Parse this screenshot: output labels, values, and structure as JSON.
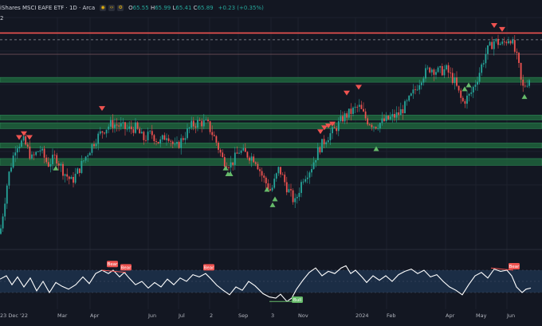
{
  "header": {
    "title": "iShares MSCI EAFE ETF · 1D · Arca",
    "ohlc": [
      {
        "key": "O",
        "value": "65.55"
      },
      {
        "key": "H",
        "value": "65.99"
      },
      {
        "key": "L",
        "value": "65.41"
      },
      {
        "key": "C",
        "value": "65.89"
      }
    ],
    "change": "+0.23 (+0.35%)",
    "sublabel": "2"
  },
  "colors": {
    "background": "#131722",
    "up": "#26a69a",
    "down": "#ef5350",
    "zone": "#1e5e3b",
    "zone_edge": "#2e8b57",
    "rsi_band": "#1b2d45",
    "rsi_line": "#ffffff",
    "bull_marker": "#66bb6a",
    "bear_marker": "#ef5350"
  },
  "icons": [
    "eye-icon",
    "code-icon",
    "gear-icon"
  ],
  "x_axis_labels": [
    {
      "text": "23 Dec '22",
      "x": 0
    },
    {
      "text": "Mar",
      "x": 72
    },
    {
      "text": "Apr",
      "x": 113
    },
    {
      "text": "Jun",
      "x": 186
    },
    {
      "text": "Jul",
      "x": 224
    },
    {
      "text": "2",
      "x": 263
    },
    {
      "text": "Sep",
      "x": 299
    },
    {
      "text": "3",
      "x": 340
    },
    {
      "text": "Nov",
      "x": 374
    },
    {
      "text": "2024",
      "x": 446
    },
    {
      "text": "Feb",
      "x": 485
    },
    {
      "text": "Apr",
      "x": 559
    },
    {
      "text": "May",
      "x": 597
    },
    {
      "text": "Jun",
      "x": 636
    }
  ],
  "chart_data": {
    "type": "candlestick",
    "y_domain": [
      59.0,
      70.8
    ],
    "support_zones": [
      {
        "from": 67.55,
        "to": 67.7
      },
      {
        "from": 65.5,
        "to": 65.75
      },
      {
        "from": 65.05,
        "to": 65.35
      },
      {
        "from": 64.1,
        "to": 64.3
      },
      {
        "from": 63.15,
        "to": 63.5
      }
    ],
    "resistance_lines": [
      70.0,
      69.65,
      68.9
    ],
    "rsi_band": [
      30,
      70
    ],
    "price_path": [
      [
        0,
        59.6
      ],
      [
        10,
        62.5
      ],
      [
        20,
        64.2
      ],
      [
        30,
        64.4
      ],
      [
        40,
        63.5
      ],
      [
        50,
        64.0
      ],
      [
        60,
        63.2
      ],
      [
        70,
        63.6
      ],
      [
        80,
        62.8
      ],
      [
        90,
        62.3
      ],
      [
        100,
        63.0
      ],
      [
        110,
        63.8
      ],
      [
        120,
        64.5
      ],
      [
        130,
        65.0
      ],
      [
        140,
        65.3
      ],
      [
        150,
        65.2
      ],
      [
        160,
        65.0
      ],
      [
        170,
        65.1
      ],
      [
        180,
        64.5
      ],
      [
        190,
        64.8
      ],
      [
        200,
        64.3
      ],
      [
        210,
        64.8
      ],
      [
        220,
        64.0
      ],
      [
        230,
        64.6
      ],
      [
        240,
        65.2
      ],
      [
        250,
        65.4
      ],
      [
        260,
        65.3
      ],
      [
        270,
        64.5
      ],
      [
        280,
        63.4
      ],
      [
        290,
        63.2
      ],
      [
        300,
        63.9
      ],
      [
        310,
        63.7
      ],
      [
        320,
        63.5
      ],
      [
        330,
        62.5
      ],
      [
        340,
        61.8
      ],
      [
        350,
        63.0
      ],
      [
        360,
        62.0
      ],
      [
        370,
        61.2
      ],
      [
        380,
        62.5
      ],
      [
        390,
        63.0
      ],
      [
        400,
        64.0
      ],
      [
        410,
        64.6
      ],
      [
        420,
        65.0
      ],
      [
        430,
        65.6
      ],
      [
        440,
        65.9
      ],
      [
        450,
        66.2
      ],
      [
        460,
        65.5
      ],
      [
        470,
        65.2
      ],
      [
        480,
        65.4
      ],
      [
        490,
        65.6
      ],
      [
        500,
        65.8
      ],
      [
        510,
        66.3
      ],
      [
        520,
        67.0
      ],
      [
        530,
        67.8
      ],
      [
        540,
        68.2
      ],
      [
        550,
        68.0
      ],
      [
        560,
        68.1
      ],
      [
        570,
        67.5
      ],
      [
        580,
        66.4
      ],
      [
        590,
        66.8
      ],
      [
        600,
        67.8
      ],
      [
        610,
        69.0
      ],
      [
        620,
        69.6
      ],
      [
        630,
        69.4
      ],
      [
        640,
        69.8
      ],
      [
        650,
        68.5
      ],
      [
        655,
        67.1
      ],
      [
        660,
        67.4
      ],
      [
        665,
        67.7
      ]
    ],
    "bull_triangles": [
      [
        70,
        63.3
      ],
      [
        283,
        63.3
      ],
      [
        286,
        63.0
      ],
      [
        289,
        63.0
      ],
      [
        335,
        62.2
      ],
      [
        342,
        61.4
      ],
      [
        345,
        61.7
      ],
      [
        472,
        64.3
      ],
      [
        583,
        67.4
      ],
      [
        588,
        67.6
      ],
      [
        658,
        67.0
      ]
    ],
    "bear_triangles": [
      [
        24,
        64.3
      ],
      [
        30,
        64.5
      ],
      [
        37,
        64.3
      ],
      [
        128,
        65.8
      ],
      [
        402,
        64.6
      ],
      [
        407,
        64.8
      ],
      [
        412,
        64.9
      ],
      [
        417,
        65.0
      ],
      [
        435,
        66.6
      ],
      [
        450,
        66.9
      ],
      [
        620,
        70.1
      ],
      [
        630,
        69.9
      ]
    ],
    "rsi_path": [
      [
        0,
        54
      ],
      [
        8,
        60
      ],
      [
        15,
        44
      ],
      [
        22,
        58
      ],
      [
        30,
        40
      ],
      [
        38,
        56
      ],
      [
        46,
        33
      ],
      [
        54,
        50
      ],
      [
        62,
        30
      ],
      [
        70,
        48
      ],
      [
        78,
        41
      ],
      [
        86,
        36
      ],
      [
        95,
        44
      ],
      [
        104,
        58
      ],
      [
        112,
        46
      ],
      [
        120,
        64
      ],
      [
        128,
        70
      ],
      [
        136,
        64
      ],
      [
        142,
        70
      ],
      [
        150,
        58
      ],
      [
        156,
        66
      ],
      [
        162,
        56
      ],
      [
        170,
        44
      ],
      [
        178,
        50
      ],
      [
        186,
        38
      ],
      [
        194,
        48
      ],
      [
        202,
        40
      ],
      [
        210,
        54
      ],
      [
        218,
        44
      ],
      [
        226,
        56
      ],
      [
        234,
        50
      ],
      [
        242,
        62
      ],
      [
        250,
        58
      ],
      [
        258,
        64
      ],
      [
        265,
        54
      ],
      [
        272,
        43
      ],
      [
        280,
        34
      ],
      [
        288,
        26
      ],
      [
        296,
        40
      ],
      [
        304,
        34
      ],
      [
        312,
        50
      ],
      [
        320,
        42
      ],
      [
        330,
        28
      ],
      [
        338,
        22
      ],
      [
        346,
        20
      ],
      [
        352,
        27
      ],
      [
        360,
        14
      ],
      [
        366,
        20
      ],
      [
        372,
        36
      ],
      [
        380,
        52
      ],
      [
        388,
        66
      ],
      [
        396,
        74
      ],
      [
        404,
        60
      ],
      [
        412,
        68
      ],
      [
        420,
        64
      ],
      [
        428,
        74
      ],
      [
        434,
        78
      ],
      [
        440,
        64
      ],
      [
        446,
        70
      ],
      [
        454,
        58
      ],
      [
        460,
        48
      ],
      [
        468,
        60
      ],
      [
        476,
        52
      ],
      [
        484,
        60
      ],
      [
        492,
        50
      ],
      [
        500,
        62
      ],
      [
        508,
        68
      ],
      [
        516,
        72
      ],
      [
        524,
        64
      ],
      [
        532,
        70
      ],
      [
        540,
        58
      ],
      [
        548,
        62
      ],
      [
        556,
        50
      ],
      [
        564,
        40
      ],
      [
        572,
        34
      ],
      [
        580,
        26
      ],
      [
        588,
        44
      ],
      [
        596,
        60
      ],
      [
        604,
        66
      ],
      [
        612,
        56
      ],
      [
        620,
        72
      ],
      [
        628,
        68
      ],
      [
        636,
        70
      ],
      [
        642,
        60
      ],
      [
        648,
        40
      ],
      [
        655,
        30
      ],
      [
        660,
        36
      ],
      [
        666,
        38
      ]
    ],
    "rsi_labels": [
      {
        "text": "Bear",
        "x": 141,
        "rsi": 74,
        "kind": "bear"
      },
      {
        "text": "Bear",
        "x": 158,
        "rsi": 68,
        "kind": "bear"
      },
      {
        "text": "Bear",
        "x": 262,
        "rsi": 68,
        "kind": "bear"
      },
      {
        "text": "Bull",
        "x": 373,
        "rsi": 10,
        "kind": "bull"
      },
      {
        "text": "Bear",
        "x": 645,
        "rsi": 70,
        "kind": "bear"
      }
    ],
    "rsi_divergence_lines": [
      [
        [
          128,
          70
        ],
        [
          158,
          66
        ]
      ],
      [
        [
          338,
          14
        ],
        [
          368,
          14
        ]
      ],
      [
        [
          616,
          74
        ],
        [
          644,
          70
        ]
      ]
    ]
  }
}
